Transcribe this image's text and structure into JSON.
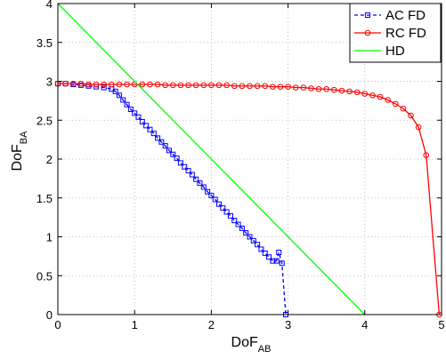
{
  "chart_data": {
    "type": "line",
    "xlabel": {
      "main": "DoF",
      "sub": "AB"
    },
    "ylabel": {
      "main": "DoF",
      "sub": "BA"
    },
    "xlim": [
      0,
      5
    ],
    "ylim": [
      0,
      4
    ],
    "xticks": [
      "0",
      "1",
      "2",
      "3",
      "4",
      "5"
    ],
    "yticks": [
      "0",
      "0.5",
      "1",
      "1.5",
      "2",
      "2.5",
      "3",
      "3.5",
      "4"
    ],
    "grid": true,
    "legend_position": "top-right",
    "series": [
      {
        "name": "AC FD",
        "color": "#0000ff",
        "line_style": "dashed",
        "marker": "square",
        "x": [
          0,
          0.1,
          0.2,
          0.3,
          0.4,
          0.5,
          0.6,
          0.7,
          0.75,
          0.8,
          0.85,
          0.9,
          0.95,
          1.0,
          1.05,
          1.1,
          1.15,
          1.2,
          1.25,
          1.3,
          1.35,
          1.4,
          1.45,
          1.5,
          1.55,
          1.6,
          1.65,
          1.7,
          1.75,
          1.8,
          1.85,
          1.9,
          1.95,
          2.0,
          2.05,
          2.1,
          2.15,
          2.2,
          2.25,
          2.3,
          2.35,
          2.4,
          2.45,
          2.5,
          2.55,
          2.6,
          2.65,
          2.7,
          2.75,
          2.8,
          2.85,
          2.88,
          2.92,
          2.97
        ],
        "y": [
          2.97,
          2.97,
          2.96,
          2.95,
          2.94,
          2.93,
          2.92,
          2.9,
          2.87,
          2.82,
          2.76,
          2.7,
          2.64,
          2.59,
          2.54,
          2.48,
          2.43,
          2.38,
          2.33,
          2.27,
          2.22,
          2.17,
          2.11,
          2.06,
          2.01,
          1.95,
          1.9,
          1.85,
          1.8,
          1.74,
          1.69,
          1.64,
          1.58,
          1.53,
          1.48,
          1.42,
          1.37,
          1.32,
          1.27,
          1.21,
          1.16,
          1.11,
          1.05,
          1.0,
          0.95,
          0.9,
          0.84,
          0.79,
          0.74,
          0.69,
          0.69,
          0.8,
          0.66,
          0.0
        ]
      },
      {
        "name": "RC FD",
        "color": "#ff0000",
        "line_style": "solid",
        "marker": "circle",
        "x": [
          0,
          0.1,
          0.2,
          0.3,
          0.4,
          0.5,
          0.6,
          0.7,
          0.8,
          0.9,
          1.0,
          1.1,
          1.2,
          1.3,
          1.4,
          1.5,
          1.6,
          1.7,
          1.8,
          1.9,
          2.0,
          2.1,
          2.2,
          2.3,
          2.4,
          2.5,
          2.6,
          2.7,
          2.8,
          2.9,
          3.0,
          3.1,
          3.2,
          3.3,
          3.4,
          3.5,
          3.6,
          3.7,
          3.8,
          3.9,
          4.0,
          4.1,
          4.2,
          4.3,
          4.4,
          4.5,
          4.6,
          4.7,
          4.8,
          4.97
        ],
        "y": [
          2.97,
          2.97,
          2.97,
          2.97,
          2.96,
          2.96,
          2.96,
          2.96,
          2.96,
          2.96,
          2.96,
          2.96,
          2.96,
          2.96,
          2.95,
          2.95,
          2.95,
          2.95,
          2.95,
          2.95,
          2.95,
          2.95,
          2.95,
          2.94,
          2.94,
          2.94,
          2.94,
          2.94,
          2.93,
          2.93,
          2.93,
          2.92,
          2.92,
          2.91,
          2.9,
          2.9,
          2.89,
          2.88,
          2.87,
          2.86,
          2.84,
          2.82,
          2.8,
          2.76,
          2.71,
          2.65,
          2.56,
          2.41,
          2.05,
          0.0
        ]
      },
      {
        "name": "HD",
        "color": "#00ff00",
        "line_style": "solid",
        "marker": "none",
        "x": [
          0,
          4
        ],
        "y": [
          4,
          0
        ]
      }
    ]
  }
}
